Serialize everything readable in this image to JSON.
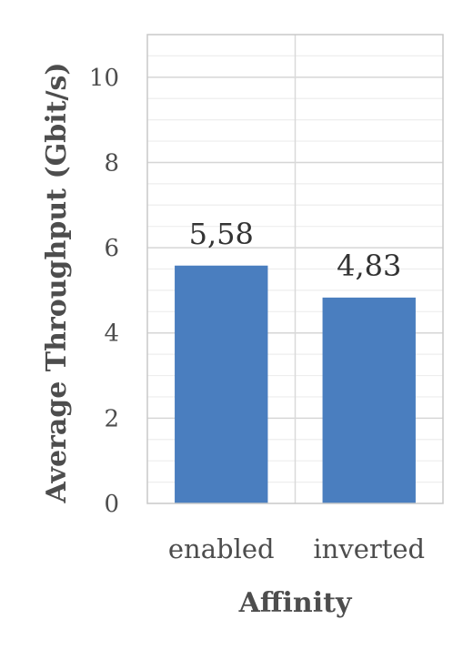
{
  "chart_data": {
    "type": "bar",
    "categories": [
      "enabled",
      "inverted"
    ],
    "values": [
      5.58,
      4.83
    ],
    "value_labels": [
      "5,58",
      "4,83"
    ],
    "xlabel": "Affinity",
    "ylabel": "Average Throughput (Gbit/s)",
    "ylim": [
      0,
      11
    ],
    "yticks": [
      0,
      2,
      4,
      6,
      8,
      10
    ],
    "minor_tick_step": 0.5,
    "bar_color": "#4a7ebf",
    "grid": true,
    "legend": "none"
  }
}
